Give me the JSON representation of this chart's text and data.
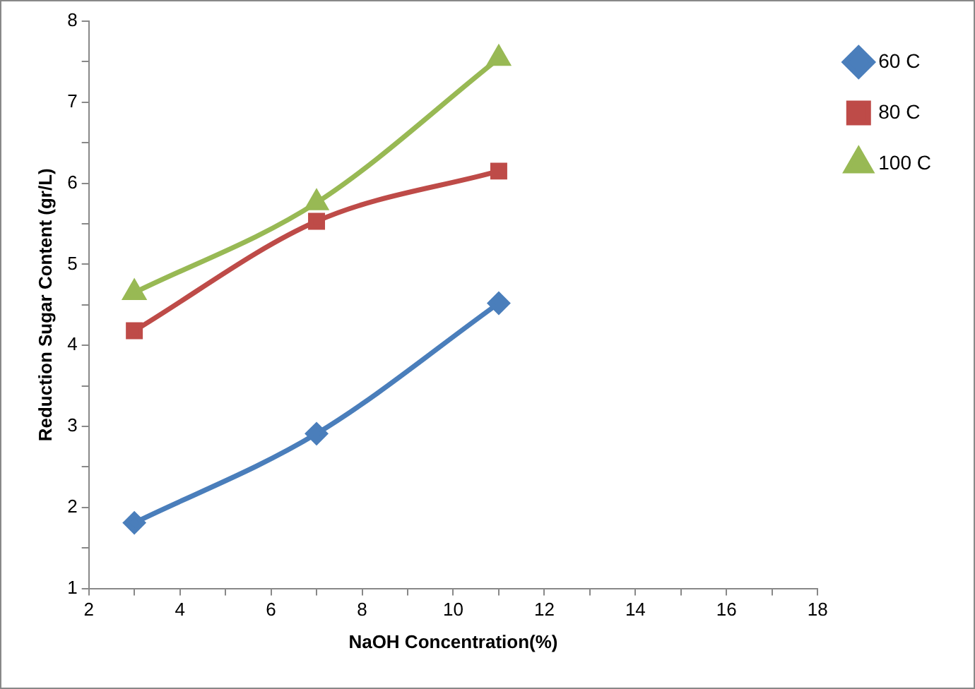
{
  "chart_data": {
    "type": "line",
    "xlabel": "NaOH Concentration(%)",
    "ylabel": "Reduction Sugar Content (gr/L)",
    "x": [
      3,
      7,
      11
    ],
    "series": [
      {
        "name": "60 C",
        "color": "#4a7ebb",
        "marker": "diamond",
        "values": [
          1.81,
          2.91,
          4.52
        ]
      },
      {
        "name": "80 C",
        "color": "#be4b48",
        "marker": "square",
        "values": [
          4.18,
          5.53,
          6.15
        ]
      },
      {
        "name": "100 C",
        "color": "#98b954",
        "marker": "triangle",
        "values": [
          4.65,
          5.76,
          7.54
        ]
      }
    ],
    "xlim": [
      2,
      18
    ],
    "xticks": [
      2,
      {
        "value": 3,
        "label": null
      },
      4,
      {
        "value": 5,
        "label": null
      },
      6,
      {
        "value": 7,
        "label": null
      },
      8,
      {
        "value": 9,
        "label": null
      },
      10,
      {
        "value": 11,
        "label": null
      },
      12,
      {
        "value": 13,
        "label": null
      },
      14,
      {
        "value": 15,
        "label": null
      },
      16,
      {
        "value": 17,
        "label": null
      },
      18
    ],
    "ylim": [
      1,
      8
    ],
    "yticks": [
      1,
      {
        "value": 1.5,
        "label": null
      },
      2,
      {
        "value": 2.5,
        "label": null
      },
      3,
      {
        "value": 3.5,
        "label": null
      },
      4,
      {
        "value": 4.5,
        "label": null
      },
      5,
      {
        "value": 5.5,
        "label": null
      },
      6,
      {
        "value": 6.5,
        "label": null
      },
      7,
      {
        "value": 7.5,
        "label": null
      },
      8
    ],
    "grid": false,
    "legend": "top right"
  }
}
